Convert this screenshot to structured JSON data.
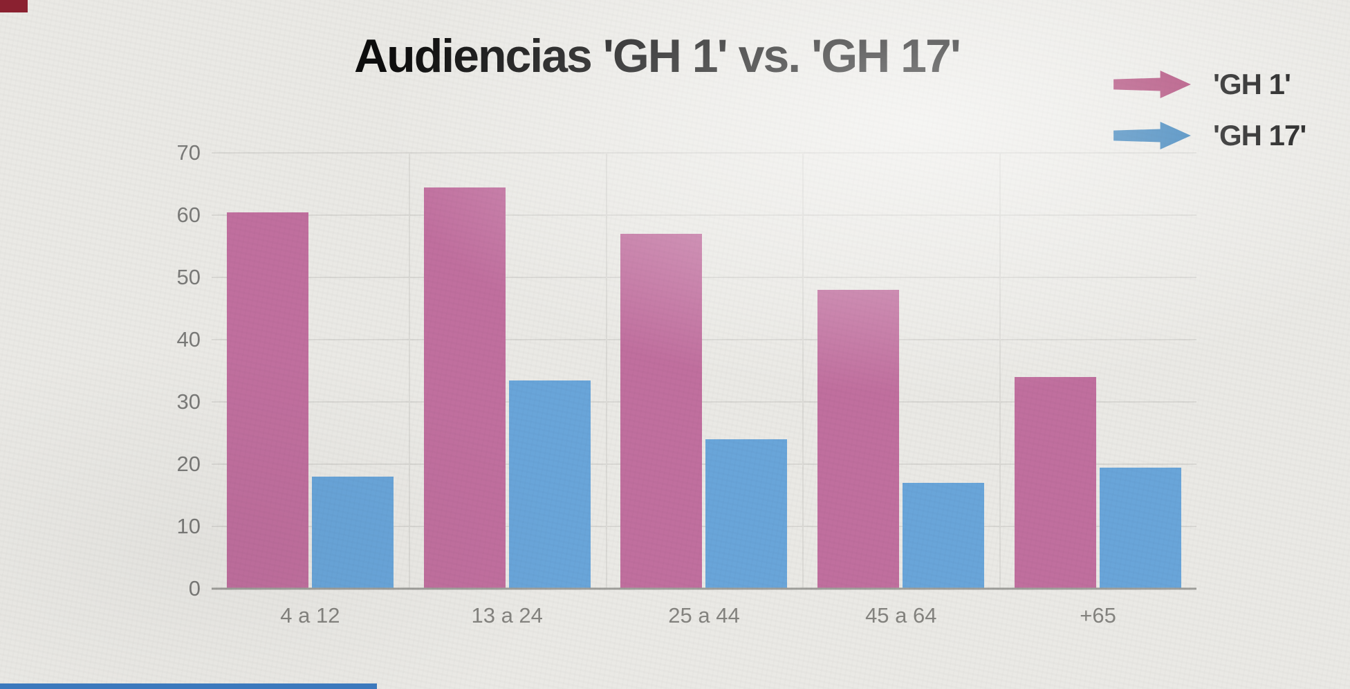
{
  "chart_data": {
    "type": "bar",
    "title": "Audiencias 'GH 1' vs. 'GH 17'",
    "categories": [
      "4 a 12",
      "13 a 24",
      "25 a 44",
      "45 a 64",
      "+65"
    ],
    "series": [
      {
        "name": "'GH 1'",
        "color": "#c06f9e",
        "values": [
          60.5,
          64.5,
          57,
          48,
          34
        ]
      },
      {
        "name": "'GH 17'",
        "color": "#69a5d9",
        "values": [
          18,
          33.5,
          24,
          17,
          19.5
        ]
      }
    ],
    "xlabel": "",
    "ylabel": "",
    "ylim": [
      0,
      70
    ],
    "yticks": [
      0,
      10,
      20,
      30,
      40,
      50,
      60,
      70
    ],
    "grid": "horizontal gridlines at each y tick, faint vertical separators between category groups",
    "legend_position": "top-right"
  },
  "legend": {
    "arrow_colors": [
      "#a93a6e",
      "#2d79b6"
    ]
  },
  "colors": {
    "background": "#eae9e5",
    "axis_text": "#7a7a78",
    "title_text": "#0d0d0d"
  }
}
